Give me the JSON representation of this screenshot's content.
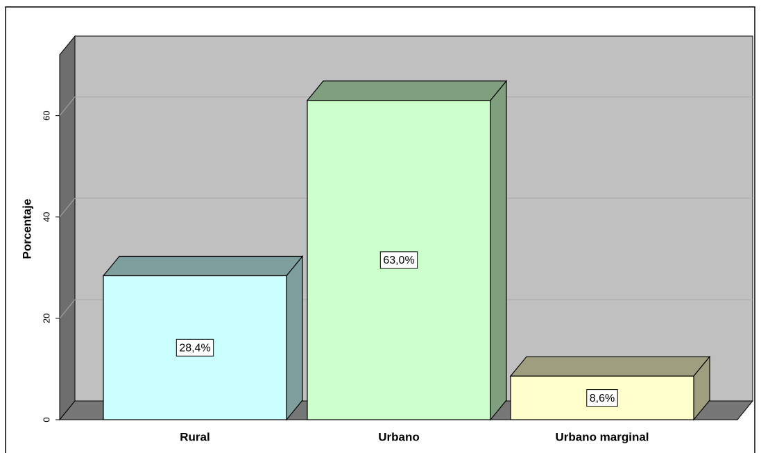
{
  "chart_data": {
    "type": "bar3d",
    "y_label": "Porcentaje",
    "categories": [
      "Rural",
      "Urbano",
      "Urbano marginal"
    ],
    "values": [
      28.4,
      63.0,
      8.6
    ],
    "value_labels": [
      "28,4%",
      "63,0%",
      "8,6%"
    ],
    "colors": [
      "#ccffff",
      "#ccffcc",
      "#ffffcc"
    ],
    "side_colors": [
      "#7f9f9f",
      "#7f9f7f",
      "#9f9f7f"
    ],
    "ylim": [
      0,
      72
    ],
    "yticks": [
      0,
      20,
      40,
      60
    ],
    "grid": true
  }
}
